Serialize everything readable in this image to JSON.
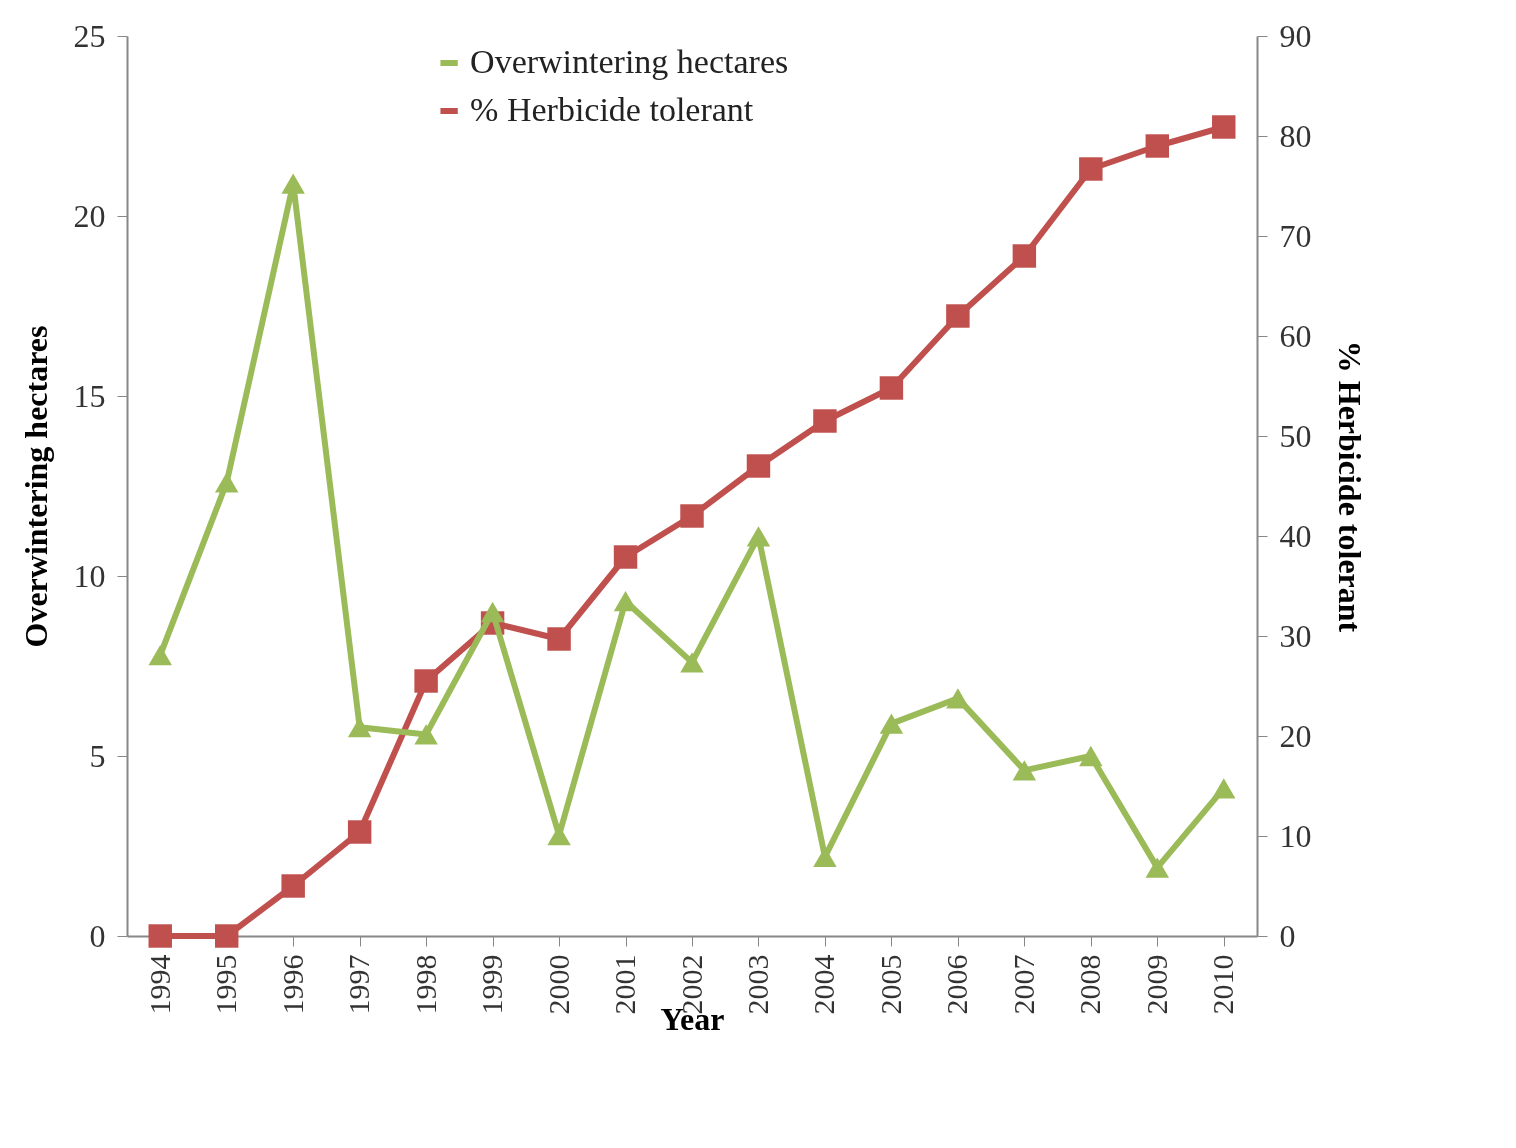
{
  "chart_data": {
    "type": "line",
    "xlabel": "Year",
    "ylabel": "Overwintering hectares",
    "y2label": "% Herbicide tolerant",
    "categories": [
      "1994",
      "1995",
      "1996",
      "1997",
      "1998",
      "1999",
      "2000",
      "2001",
      "2002",
      "2003",
      "2004",
      "2005",
      "2006",
      "2007",
      "2008",
      "2009",
      "2010"
    ],
    "series": [
      {
        "name": "Overwintering hectares",
        "color": "#9bbb59",
        "marker": "triangle",
        "values": [
          7.8,
          12.6,
          20.9,
          5.8,
          5.6,
          9.0,
          2.8,
          9.3,
          7.6,
          11.1,
          2.2,
          5.9,
          6.6,
          4.6,
          5.0,
          1.9,
          4.1
        ]
      },
      {
        "name": "% Herbicide tolerant",
        "color": "#c0504d",
        "marker": "square",
        "axis": "y2",
        "values": [
          0,
          0,
          5.0,
          10.4,
          25.5,
          31.3,
          29.7,
          37.9,
          42.0,
          47.0,
          51.5,
          54.8,
          62.0,
          68.0,
          76.7,
          79.0,
          80.9
        ]
      }
    ],
    "ylim": [
      0,
      25
    ],
    "yticks": [
      0,
      5,
      10,
      15,
      20,
      25
    ],
    "y2lim": [
      0,
      90
    ],
    "y2ticks": [
      0,
      10,
      20,
      30,
      40,
      50,
      60,
      70,
      80,
      90
    ],
    "grid": false,
    "legend": "top"
  }
}
